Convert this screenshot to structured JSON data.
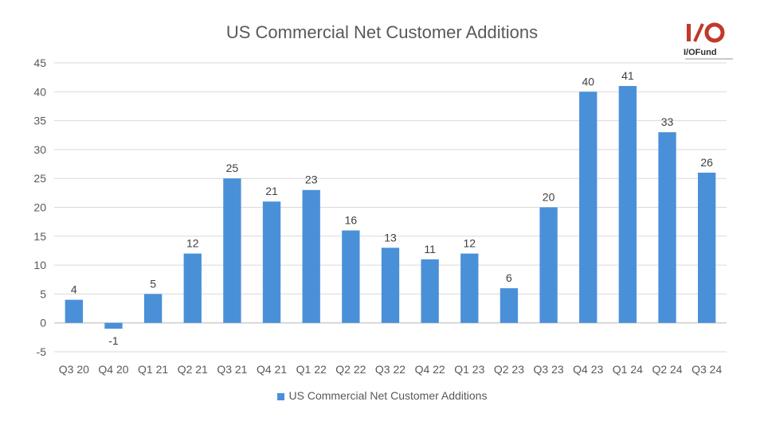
{
  "logo": {
    "text": "I/OFund",
    "accent": "#c0392b"
  },
  "chart_data": {
    "type": "bar",
    "title": "US Commercial Net Customer Additions",
    "categories": [
      "Q3 20",
      "Q4 20",
      "Q1 21",
      "Q2 21",
      "Q3 21",
      "Q4 21",
      "Q1 22",
      "Q2 22",
      "Q3 22",
      "Q4 22",
      "Q1 23",
      "Q2 23",
      "Q3 23",
      "Q4 23",
      "Q1 24",
      "Q2 24",
      "Q3 24"
    ],
    "series": [
      {
        "name": "US Commercial Net Customer Additions",
        "color": "#4a90d9",
        "values": [
          4,
          -1,
          5,
          12,
          25,
          21,
          23,
          16,
          13,
          11,
          12,
          6,
          20,
          40,
          41,
          33,
          26
        ]
      }
    ],
    "ylim": [
      -5,
      45
    ],
    "yticks": [
      -5,
      0,
      5,
      10,
      15,
      20,
      25,
      30,
      35,
      40,
      45
    ],
    "grid": true,
    "legend": "bottom",
    "data_labels": true
  }
}
